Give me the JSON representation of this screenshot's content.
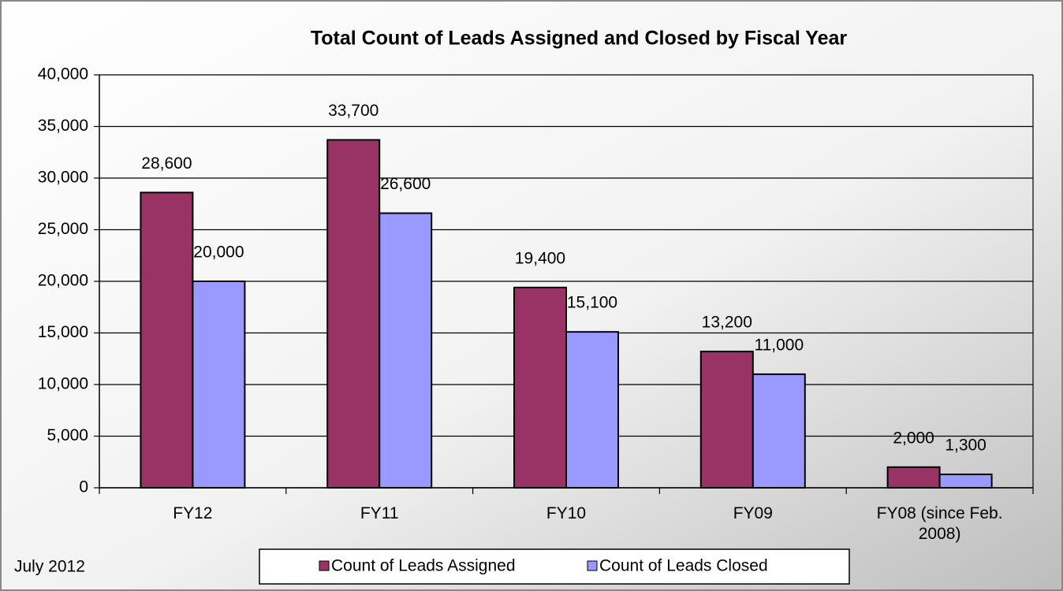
{
  "chart_data": {
    "type": "bar",
    "title": "Total Count of Leads Assigned and Closed by Fiscal Year",
    "categories": [
      "FY12",
      "FY11",
      "FY10",
      "FY09",
      "FY08 (since Feb. 2008)"
    ],
    "series": [
      {
        "name": "Count of Leads Assigned",
        "color": "#993366",
        "values": [
          28600,
          33700,
          19400,
          13200,
          2000
        ],
        "value_labels": [
          "28,600",
          "33,700",
          "19,400",
          "13,200",
          "2,000"
        ]
      },
      {
        "name": "Count of Leads Closed",
        "color": "#9999ff",
        "values": [
          20000,
          26600,
          15100,
          11000,
          1300
        ],
        "value_labels": [
          "20,000",
          "26,600",
          "15,100",
          "11,000",
          "1,300"
        ]
      }
    ],
    "ylim": [
      0,
      40000
    ],
    "yticks": [
      0,
      {
        "value": 5000,
        "label": "5,000"
      },
      {
        "value": 10000,
        "label": "10,000"
      },
      {
        "value": 15000,
        "label": "15,000"
      },
      {
        "value": 20000,
        "label": "20,000"
      },
      {
        "value": 25000,
        "label": "25,000"
      },
      {
        "value": 30000,
        "label": "30,000"
      },
      {
        "value": 35000,
        "label": "35,000"
      },
      {
        "value": 40000,
        "label": "40,000"
      }
    ],
    "grid": true,
    "legend": "bottom",
    "footnote": "July 2012"
  }
}
